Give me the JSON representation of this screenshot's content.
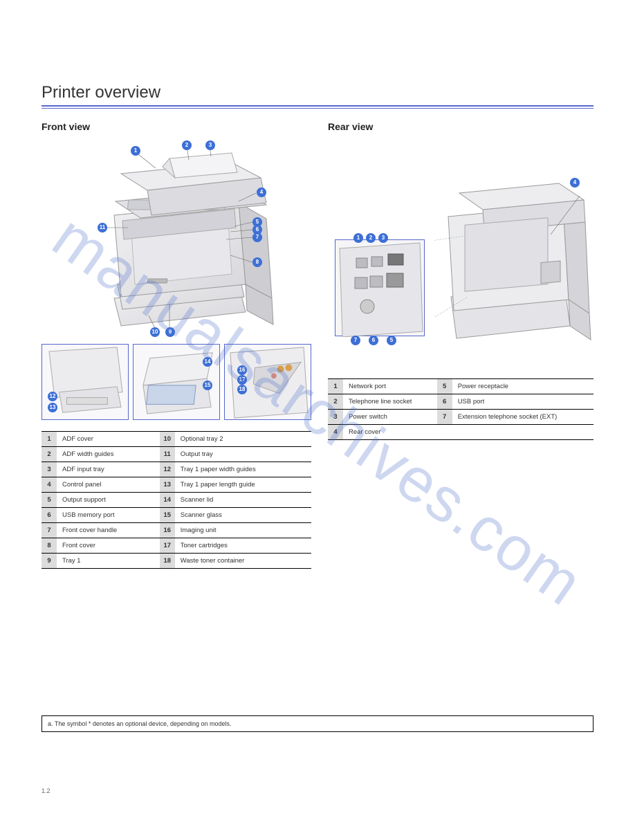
{
  "title": "Printer overview",
  "front_section": "Front view",
  "rear_section": "Rear view",
  "front_parts": [
    {
      "n": "1",
      "label": "ADF cover",
      "n2": "10",
      "label2": "Optional tray 2"
    },
    {
      "n": "2",
      "label": "ADF width guides",
      "n2": "11",
      "label2": "Output tray"
    },
    {
      "n": "3",
      "label": "ADF input tray",
      "n2": "12",
      "label2": "Tray 1 paper width guides"
    },
    {
      "n": "4",
      "label": "Control panel",
      "n2": "13",
      "label2": "Tray 1 paper length guide"
    },
    {
      "n": "5",
      "label": "Output support",
      "n2": "14",
      "label2": "Scanner lid"
    },
    {
      "n": "6",
      "label": "USB memory port",
      "n2": "15",
      "label2": "Scanner glass"
    },
    {
      "n": "7",
      "label": "Front cover handle",
      "n2": "16",
      "label2": "Imaging unit"
    },
    {
      "n": "8",
      "label": "Front cover",
      "n2": "17",
      "label2": "Toner cartridges"
    },
    {
      "n": "9",
      "label": "Tray 1",
      "n2": "18",
      "label2": "Waste toner container"
    }
  ],
  "rear_parts": [
    {
      "n": "1",
      "label": "Network port",
      "n2": "5",
      "label2": "Power receptacle"
    },
    {
      "n": "2",
      "label": "Telephone line socket",
      "n2": "6",
      "label2": "USB port"
    },
    {
      "n": "3",
      "label": "Power switch",
      "n2": "7",
      "label2": "Extension telephone socket (EXT)"
    },
    {
      "n": "4",
      "label": "Rear cover",
      "n2": "",
      "label2": ""
    }
  ],
  "footnote": "a. The symbol * denotes an optional device, depending on models.",
  "callout_color": "#3d6fd6",
  "rule_color": "#5566cc",
  "watermark_text": "manualsarchives.com",
  "page_footer": "1.2"
}
